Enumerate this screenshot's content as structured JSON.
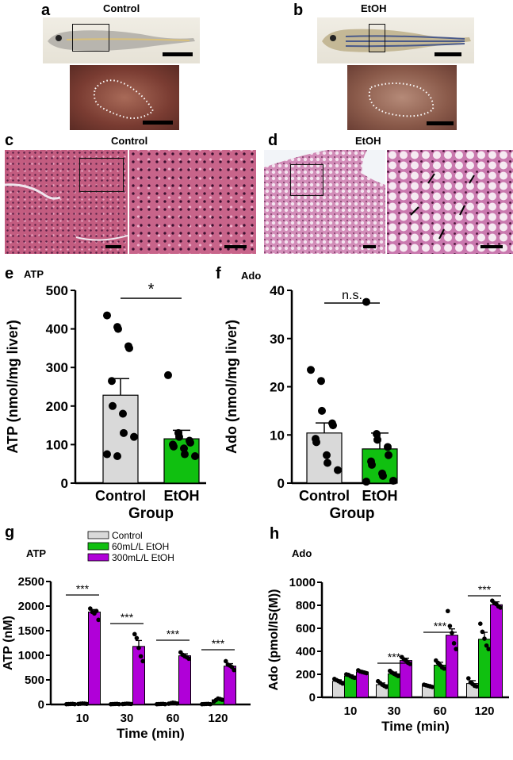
{
  "panels": {
    "a": {
      "letter": "a",
      "title": "Control"
    },
    "b": {
      "letter": "b",
      "title": "EtOH"
    },
    "c": {
      "letter": "c",
      "title": "Control"
    },
    "d": {
      "letter": "d",
      "title": "EtOH"
    },
    "e": {
      "letter": "e",
      "title": "ATP"
    },
    "f": {
      "letter": "f",
      "title": "Ado"
    },
    "g": {
      "letter": "g",
      "title": "ATP"
    },
    "h": {
      "letter": "h",
      "title": "Ado"
    }
  },
  "colors": {
    "control": "#d9d9d9",
    "etoh": "#10c010",
    "etoh_low": "#10c010",
    "etoh_high": "#b000d8",
    "point": "#000000",
    "he_control": "#c05a7e",
    "he_etoh": "#d08ab8"
  },
  "chart_data": [
    {
      "id": "e",
      "type": "bar",
      "title": "ATP",
      "ylabel": "ATP (nmol/mg liver)",
      "xlabel": "Group",
      "ylim": [
        0,
        500
      ],
      "yticks": [
        "0",
        "100",
        "200",
        "300",
        "400",
        "500"
      ],
      "categories": [
        "Control",
        "EtOH"
      ],
      "values": [
        228,
        115
      ],
      "errors": [
        43,
        22
      ],
      "points": [
        [
          435,
          405,
          400,
          355,
          350,
          265,
          200,
          180,
          130,
          120,
          75,
          70
        ],
        [
          280,
          130,
          120,
          110,
          105,
          100,
          95,
          90,
          75,
          70
        ]
      ],
      "significance": "*"
    },
    {
      "id": "f",
      "type": "bar",
      "title": "Ado",
      "ylabel": "Ado (nmol/mg liver)",
      "xlabel": "Group",
      "ylim": [
        0,
        40
      ],
      "yticks": [
        "0",
        "10",
        "20",
        "30",
        "40"
      ],
      "categories": [
        "Control",
        "EtOH"
      ],
      "values": [
        10.4,
        7.1
      ],
      "errors": [
        2.1,
        3.3
      ],
      "points": [
        [
          23.5,
          21.2,
          15.0,
          12.4,
          12.0,
          9.2,
          8.5,
          5.8,
          4.2,
          2.7
        ],
        [
          37.6,
          10.2,
          9.0,
          7.5,
          5.8,
          4.5,
          3.8,
          2.0,
          1.5,
          0.5,
          0.3
        ]
      ],
      "significance": "n.s."
    },
    {
      "id": "g",
      "type": "bar",
      "title": "ATP",
      "ylabel": "ATP (nM)",
      "xlabel": "Time (min)",
      "ylim": [
        0,
        2500
      ],
      "yticks": [
        "0",
        "500",
        "1000",
        "1500",
        "2000",
        "2500"
      ],
      "categories": [
        "10",
        "30",
        "60",
        "120"
      ],
      "series": [
        {
          "name": "Control",
          "values": [
            8,
            8,
            8,
            8
          ],
          "errors": [
            3,
            3,
            3,
            3
          ],
          "points": [
            [
              5,
              8,
              10,
              12,
              6
            ],
            [
              5,
              8,
              10,
              12,
              6
            ],
            [
              5,
              8,
              10,
              12,
              6
            ],
            [
              5,
              8,
              10,
              12,
              6
            ]
          ]
        },
        {
          "name": "60mL/L EtOH",
          "values": [
            15,
            12,
            25,
            95
          ],
          "errors": [
            5,
            5,
            8,
            20
          ],
          "points": [
            [
              10,
              15,
              20,
              18,
              12
            ],
            [
              8,
              12,
              16,
              14,
              10
            ],
            [
              15,
              25,
              35,
              30,
              20
            ],
            [
              60,
              90,
              120,
              110,
              95
            ]
          ]
        },
        {
          "name": "300mL/L EtOH",
          "values": [
            1880,
            1180,
            990,
            780
          ],
          "errors": [
            50,
            120,
            40,
            50
          ],
          "points": [
            [
              1950,
              1880,
              1850,
              1900,
              1720
            ],
            [
              1430,
              1350,
              1150,
              980,
              880
            ],
            [
              1060,
              1010,
              980,
              960,
              930
            ],
            [
              880,
              810,
              790,
              760,
              700
            ]
          ]
        }
      ],
      "significance": [
        "***",
        "***",
        "***",
        "***"
      ]
    },
    {
      "id": "h",
      "type": "bar",
      "title": "Ado",
      "ylabel": "Ado (pmol/IS(M))",
      "xlabel": "Time (min)",
      "ylim": [
        0,
        1000
      ],
      "yticks": [
        "0",
        "200",
        "400",
        "600",
        "800",
        "1000"
      ],
      "categories": [
        "10",
        "30",
        "60",
        "120"
      ],
      "series": [
        {
          "name": "Control",
          "values": [
            140,
            110,
            100,
            120
          ],
          "errors": [
            12,
            15,
            10,
            25
          ],
          "points": [
            [
              160,
              150,
              140,
              130,
              120
            ],
            [
              140,
              125,
              110,
              100,
              90
            ],
            [
              110,
              105,
              100,
              95,
              90
            ],
            [
              165,
              130,
              115,
              100,
              95
            ]
          ]
        },
        {
          "name": "60mL/L EtOH",
          "values": [
            185,
            205,
            280,
            505
          ],
          "errors": [
            10,
            15,
            25,
            60
          ],
          "points": [
            [
              200,
              195,
              185,
              175,
              170
            ],
            [
              230,
              215,
              205,
              195,
              185
            ],
            [
              320,
              300,
              280,
              260,
              250
            ],
            [
              640,
              570,
              510,
              450,
              420
            ]
          ]
        },
        {
          "name": "300mL/L EtOH",
          "values": [
            220,
            320,
            540,
            805
          ],
          "errors": [
            8,
            20,
            55,
            25
          ],
          "points": [
            [
              235,
              225,
              220,
              215,
              210
            ],
            [
              350,
              330,
              320,
              300,
              290
            ],
            [
              750,
              620,
              560,
              470,
              420
            ],
            [
              840,
              820,
              810,
              790,
              780
            ]
          ]
        }
      ],
      "significance": [
        "***",
        "***",
        "***"
      ],
      "significance_groups": [
        "30",
        "60",
        "120"
      ]
    }
  ],
  "legend": [
    "Control",
    "60mL/L EtOH",
    "300mL/L EtOH"
  ]
}
